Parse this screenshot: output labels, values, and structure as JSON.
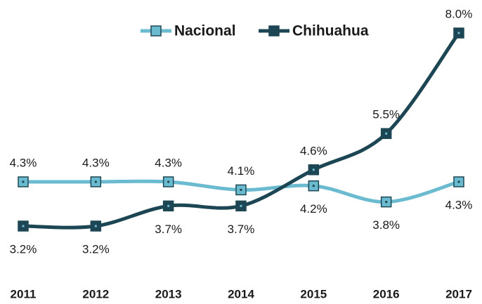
{
  "chart_data": {
    "type": "line",
    "categories": [
      "2011",
      "2012",
      "2013",
      "2014",
      "2015",
      "2016",
      "2017"
    ],
    "series": [
      {
        "name": "Nacional",
        "color": "#6bbbd0",
        "values": [
          4.3,
          4.3,
          4.3,
          4.1,
          4.2,
          3.8,
          4.3
        ],
        "value_labels": [
          "4.3%",
          "4.3%",
          "4.3%",
          "4.1%",
          "4.2%",
          "3.8%",
          "4.3%"
        ]
      },
      {
        "name": "Chihuahua",
        "color": "#1d4654",
        "values": [
          3.2,
          3.2,
          3.7,
          3.7,
          4.6,
          5.5,
          8.0
        ],
        "value_labels": [
          "3.2%",
          "3.2%",
          "3.7%",
          "3.7%",
          "4.6%",
          "5.5%",
          "8.0%"
        ]
      }
    ],
    "legend": "top"
  }
}
